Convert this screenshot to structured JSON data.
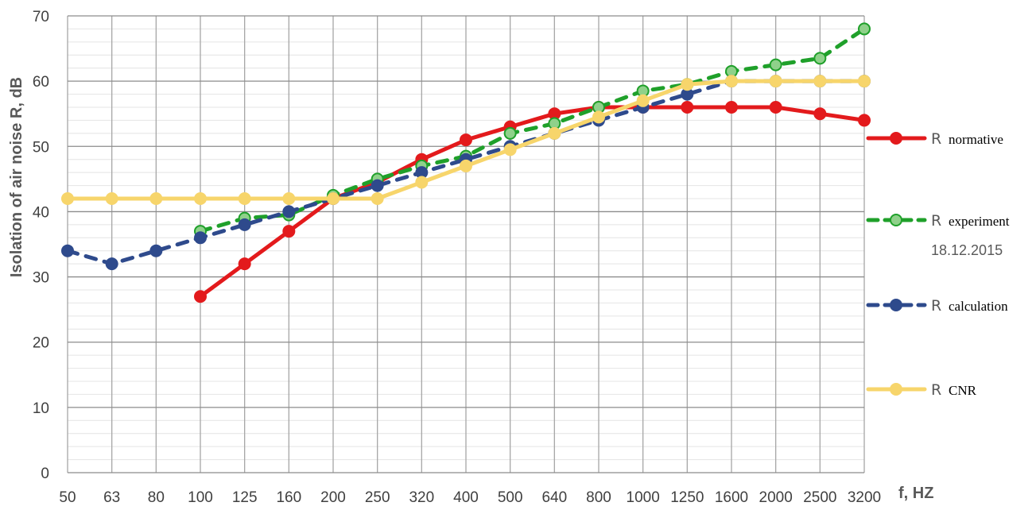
{
  "chart_data": {
    "type": "line",
    "xlabel": "f, HZ",
    "ylabel": "Isolation of air noise  R, dB",
    "ylim": [
      0,
      70
    ],
    "yticks": [
      0,
      10,
      20,
      30,
      40,
      50,
      60,
      70
    ],
    "grid": true,
    "legend_position": "right",
    "categories": [
      "50",
      "63",
      "80",
      "100",
      "125",
      "160",
      "200",
      "250",
      "320",
      "400",
      "500",
      "640",
      "800",
      "1000",
      "1250",
      "1600",
      "2000",
      "2500",
      "3200"
    ],
    "series": [
      {
        "name": "normative",
        "prefix": "R",
        "color": "#e31a1c",
        "dashed": false,
        "marker_fill": "#e31a1c",
        "values": [
          null,
          null,
          null,
          27,
          32,
          37,
          42,
          44.5,
          48,
          51,
          53,
          55,
          56,
          56,
          56,
          56,
          56,
          55,
          54
        ]
      },
      {
        "name": "experiment",
        "prefix": "R",
        "extra": "18.12.2015",
        "color": "#1fa02a",
        "dashed": true,
        "marker_fill": "#8fd18a",
        "values": [
          null,
          null,
          null,
          37,
          39,
          39.5,
          42.5,
          45,
          47,
          48.5,
          52,
          53.5,
          56,
          58.5,
          59.5,
          61.5,
          62.5,
          63.5,
          68
        ]
      },
      {
        "name": "calculation",
        "prefix": "R",
        "color": "#2e4a8c",
        "dashed": true,
        "marker_fill": "#2e4a8c",
        "values": [
          34,
          32,
          34,
          36,
          38,
          40,
          42,
          44,
          46,
          48,
          50,
          52,
          54,
          56,
          58,
          60,
          60,
          60,
          60
        ]
      },
      {
        "name": "CNR",
        "prefix": "R",
        "color": "#f7d56b",
        "dashed": false,
        "marker_fill": "#f7d56b",
        "values": [
          42,
          42,
          42,
          42,
          42,
          42,
          42,
          42,
          44.5,
          47,
          49.5,
          52,
          54.5,
          57,
          59.5,
          60,
          60,
          60,
          60
        ]
      }
    ]
  }
}
